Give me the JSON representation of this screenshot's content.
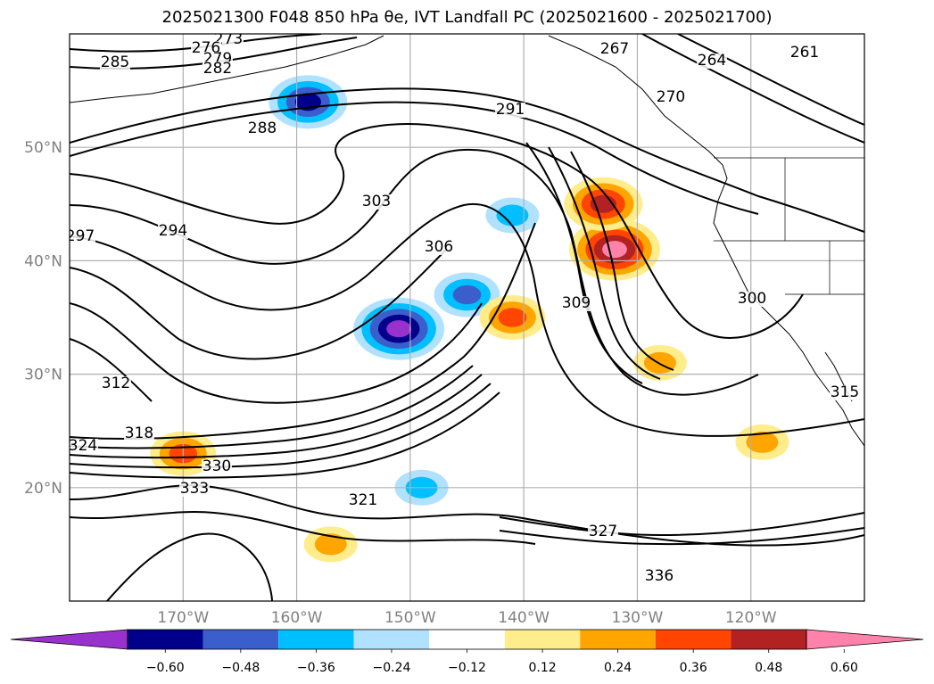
{
  "chart_data": {
    "type": "heatmap",
    "title": "2025021300 F048 850 hPa θe, IVT Landfall PC (2025021600 - 2025021700)",
    "xlabel": "",
    "ylabel": "",
    "x_range": [
      -180,
      -110
    ],
    "y_range": [
      10,
      60
    ],
    "x_ticks": [
      {
        "value": -170,
        "label": "170°W"
      },
      {
        "value": -160,
        "label": "160°W"
      },
      {
        "value": -150,
        "label": "150°W"
      },
      {
        "value": -140,
        "label": "140°W"
      },
      {
        "value": -130,
        "label": "130°W"
      },
      {
        "value": -120,
        "label": "120°W"
      }
    ],
    "y_ticks": [
      {
        "value": 20,
        "label": "20°N"
      },
      {
        "value": 30,
        "label": "30°N"
      },
      {
        "value": 40,
        "label": "40°N"
      },
      {
        "value": 50,
        "label": "50°N"
      }
    ],
    "grid": true,
    "colorbar": {
      "levels": [
        -0.6,
        -0.48,
        -0.36,
        -0.24,
        -0.12,
        0.12,
        0.24,
        0.36,
        0.48,
        0.6
      ],
      "labels": [
        "−0.60",
        "−0.48",
        "−0.36",
        "−0.24",
        "−0.12",
        "0.12",
        "0.24",
        "0.36",
        "0.48",
        "0.60"
      ],
      "colors": [
        "#9932cc",
        "#00008b",
        "#3a5fcd",
        "#00bfff",
        "#b0e2ff",
        "#ffffff",
        "#ffec8b",
        "#ffa500",
        "#ff4500",
        "#b22222",
        "#ff82ab"
      ],
      "extend": "both"
    },
    "contour_labels": [
      "273",
      "276",
      "279",
      "282",
      "285",
      "288",
      "291",
      "294",
      "297",
      "300",
      "303",
      "306",
      "309",
      "312",
      "315",
      "318",
      "321",
      "324",
      "327",
      "330",
      "333",
      "336",
      "261",
      "264",
      "267",
      "270"
    ],
    "shaded_regions": [
      {
        "sign": "negative",
        "level": -0.6,
        "center": [
          -151,
          34
        ]
      },
      {
        "sign": "negative",
        "level": -0.48,
        "center": [
          -159,
          54
        ]
      },
      {
        "sign": "negative",
        "level": -0.36,
        "center": [
          -145,
          37
        ]
      },
      {
        "sign": "negative",
        "level": -0.24,
        "center": [
          -141,
          44
        ]
      },
      {
        "sign": "negative",
        "level": -0.24,
        "center": [
          -149,
          20
        ]
      },
      {
        "sign": "positive",
        "level": 0.6,
        "center": [
          -132,
          41
        ]
      },
      {
        "sign": "positive",
        "level": 0.48,
        "center": [
          -133,
          45
        ]
      },
      {
        "sign": "positive",
        "level": 0.36,
        "center": [
          -170,
          23
        ]
      },
      {
        "sign": "positive",
        "level": 0.36,
        "center": [
          -141,
          35
        ]
      },
      {
        "sign": "positive",
        "level": 0.24,
        "center": [
          -128,
          31
        ]
      },
      {
        "sign": "positive",
        "level": 0.24,
        "center": [
          -157,
          15
        ]
      },
      {
        "sign": "positive",
        "level": 0.24,
        "center": [
          -119,
          24
        ]
      }
    ]
  }
}
